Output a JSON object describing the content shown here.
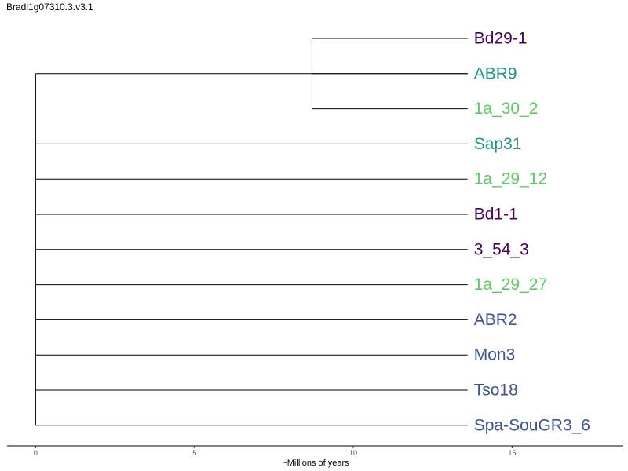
{
  "title": "Bradi1g07310.3.v3.1",
  "chart_data": {
    "type": "tree",
    "xlabel": "~Millions of years",
    "xlim": [
      -0.9,
      18.5
    ],
    "xticks": [
      0,
      5,
      10,
      15
    ],
    "root_age": 0,
    "tip_age": 13.6,
    "colors": {
      "dark_purple": "#440154",
      "teal": "#21918c",
      "green": "#5ec962",
      "blue": "#3b528b"
    },
    "tips": [
      {
        "label": "Bd29-1",
        "color": "#440154"
      },
      {
        "label": "ABR9",
        "color": "#21918c"
      },
      {
        "label": "1a_30_2",
        "color": "#5ec962"
      },
      {
        "label": "Sap31",
        "color": "#21918c"
      },
      {
        "label": "1a_29_12",
        "color": "#5ec962"
      },
      {
        "label": "Bd1-1",
        "color": "#440154"
      },
      {
        "label": "3_54_3",
        "color": "#440154"
      },
      {
        "label": "1a_29_27",
        "color": "#5ec962"
      },
      {
        "label": "ABR2",
        "color": "#3b528b"
      },
      {
        "label": "Mon3",
        "color": "#3b528b"
      },
      {
        "label": "Tso18",
        "color": "#3b528b"
      },
      {
        "label": "Spa-SouGR3_6",
        "color": "#3b528b"
      }
    ],
    "clades": [
      {
        "members": [
          "Bd29-1",
          "ABR9",
          "1a_30_2"
        ],
        "node_age": 8.7
      }
    ]
  }
}
